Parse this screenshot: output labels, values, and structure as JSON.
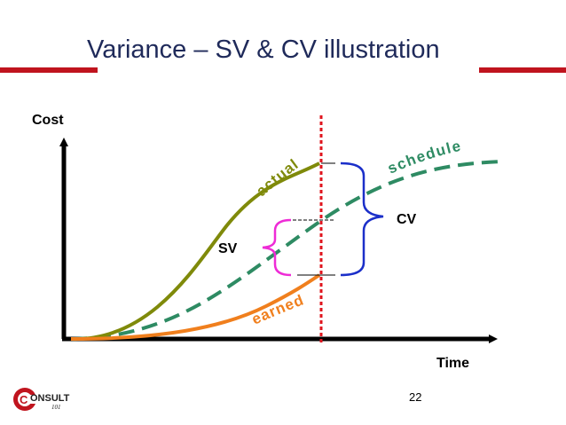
{
  "slide": {
    "title": "Variance – SV & CV illustration",
    "page_number": "22"
  },
  "diagram": {
    "y_axis_label": "Cost",
    "x_axis_label": "Time",
    "curve_labels": {
      "actual": "actual",
      "schedule": "schedule",
      "earned": "earned"
    },
    "variance_labels": {
      "sv": "SV",
      "cv": "CV"
    },
    "colors": {
      "actual": "#7f8a0a",
      "schedule": "#2e8b63",
      "earned": "#f07f1d",
      "status_line": "#e0151e",
      "sv_brace": "#ee2bd6",
      "cv_brace": "#1b2fc9",
      "title_rule": "#c0141e"
    }
  },
  "logo": {
    "text_main": "ONSULT",
    "text_sub": "101",
    "initial": "C"
  }
}
